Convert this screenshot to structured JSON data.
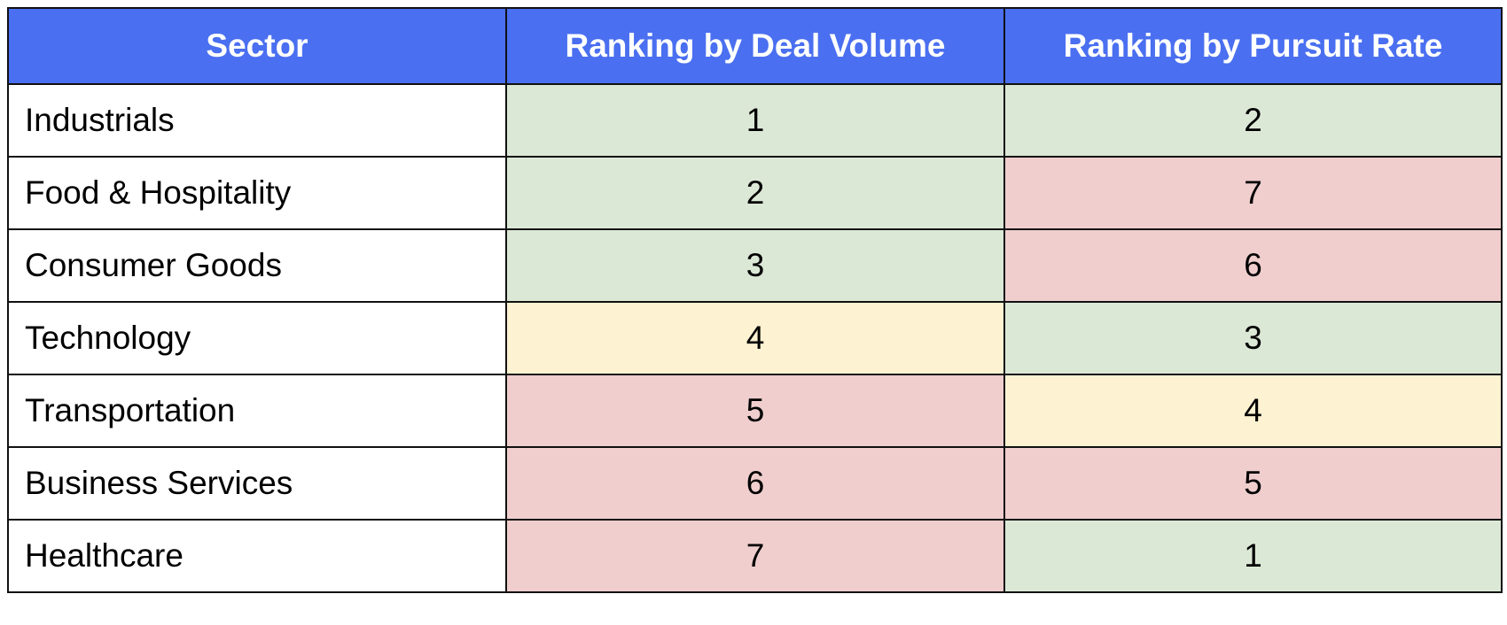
{
  "chart_data": {
    "type": "table",
    "columns": [
      "Sector",
      "Ranking by Deal Volume",
      "Ranking by Pursuit Rate"
    ],
    "rows": [
      {
        "sector": "Industrials",
        "deal_volume": "1",
        "pursuit_rate": "2",
        "deal_volume_tier": "good",
        "pursuit_rate_tier": "good"
      },
      {
        "sector": "Food & Hospitality",
        "deal_volume": "2",
        "pursuit_rate": "7",
        "deal_volume_tier": "good",
        "pursuit_rate_tier": "bad"
      },
      {
        "sector": "Consumer Goods",
        "deal_volume": "3",
        "pursuit_rate": "6",
        "deal_volume_tier": "good",
        "pursuit_rate_tier": "bad"
      },
      {
        "sector": "Technology",
        "deal_volume": "4",
        "pursuit_rate": "3",
        "deal_volume_tier": "mid",
        "pursuit_rate_tier": "good"
      },
      {
        "sector": "Transportation",
        "deal_volume": "5",
        "pursuit_rate": "4",
        "deal_volume_tier": "bad",
        "pursuit_rate_tier": "mid"
      },
      {
        "sector": "Business Services",
        "deal_volume": "6",
        "pursuit_rate": "5",
        "deal_volume_tier": "bad",
        "pursuit_rate_tier": "bad"
      },
      {
        "sector": "Healthcare",
        "deal_volume": "7",
        "pursuit_rate": "1",
        "deal_volume_tier": "bad",
        "pursuit_rate_tier": "good"
      }
    ]
  },
  "colors": {
    "header": "#4a6ff0",
    "good": "#dce8d6",
    "mid": "#fdf2d1",
    "bad": "#efcecd"
  }
}
